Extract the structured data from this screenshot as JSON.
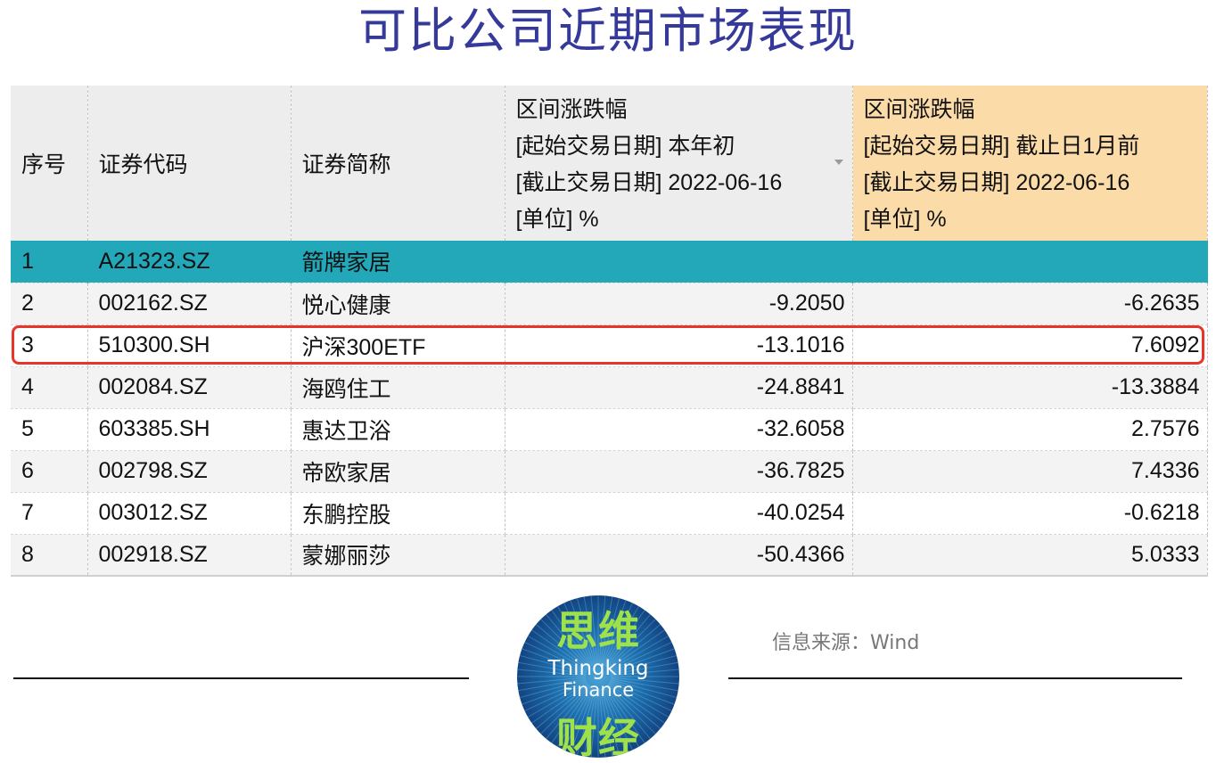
{
  "title": "可比公司近期市场表现",
  "table": {
    "headers": {
      "seq": "序号",
      "code": "证券代码",
      "name": "证券简称",
      "col_ytd": {
        "line1": "区间涨跌幅",
        "line2": "[起始交易日期] 本年初",
        "line3": "[截止交易日期] 2022-06-16",
        "line4": "[单位] %"
      },
      "col_1m": {
        "line1": "区间涨跌幅",
        "line2": "[起始交易日期] 截止日1月前",
        "line3": "[截止交易日期] 2022-06-16",
        "line4": "[单位] %"
      }
    },
    "rows": [
      {
        "seq": "1",
        "code": "A21323.SZ",
        "name": "箭牌家居",
        "ytd": "",
        "m1": ""
      },
      {
        "seq": "2",
        "code": "002162.SZ",
        "name": "悦心健康",
        "ytd": "-9.2050",
        "m1": "-6.2635"
      },
      {
        "seq": "3",
        "code": "510300.SH",
        "name": "沪深300ETF",
        "ytd": "-13.1016",
        "m1": "7.6092"
      },
      {
        "seq": "4",
        "code": "002084.SZ",
        "name": "海鸥住工",
        "ytd": "-24.8841",
        "m1": "-13.3884"
      },
      {
        "seq": "5",
        "code": "603385.SH",
        "name": "惠达卫浴",
        "ytd": "-32.6058",
        "m1": "2.7576"
      },
      {
        "seq": "6",
        "code": "002798.SZ",
        "name": "帝欧家居",
        "ytd": "-36.7825",
        "m1": "7.4336"
      },
      {
        "seq": "7",
        "code": "003012.SZ",
        "name": "东鹏控股",
        "ytd": "-40.0254",
        "m1": "-0.6218"
      },
      {
        "seq": "8",
        "code": "002918.SZ",
        "name": "蒙娜丽莎",
        "ytd": "-50.4366",
        "m1": "5.0333"
      }
    ],
    "selected_row_color": "#22a8b9",
    "highlight_column_color": "#fbdca8",
    "annotation_box_color": "#e8352a"
  },
  "logo": {
    "cn_top": "思维",
    "en_line1": "Thingking",
    "en_line2": "Finance",
    "cn_bottom": "财经"
  },
  "source": "信息来源：Wind"
}
